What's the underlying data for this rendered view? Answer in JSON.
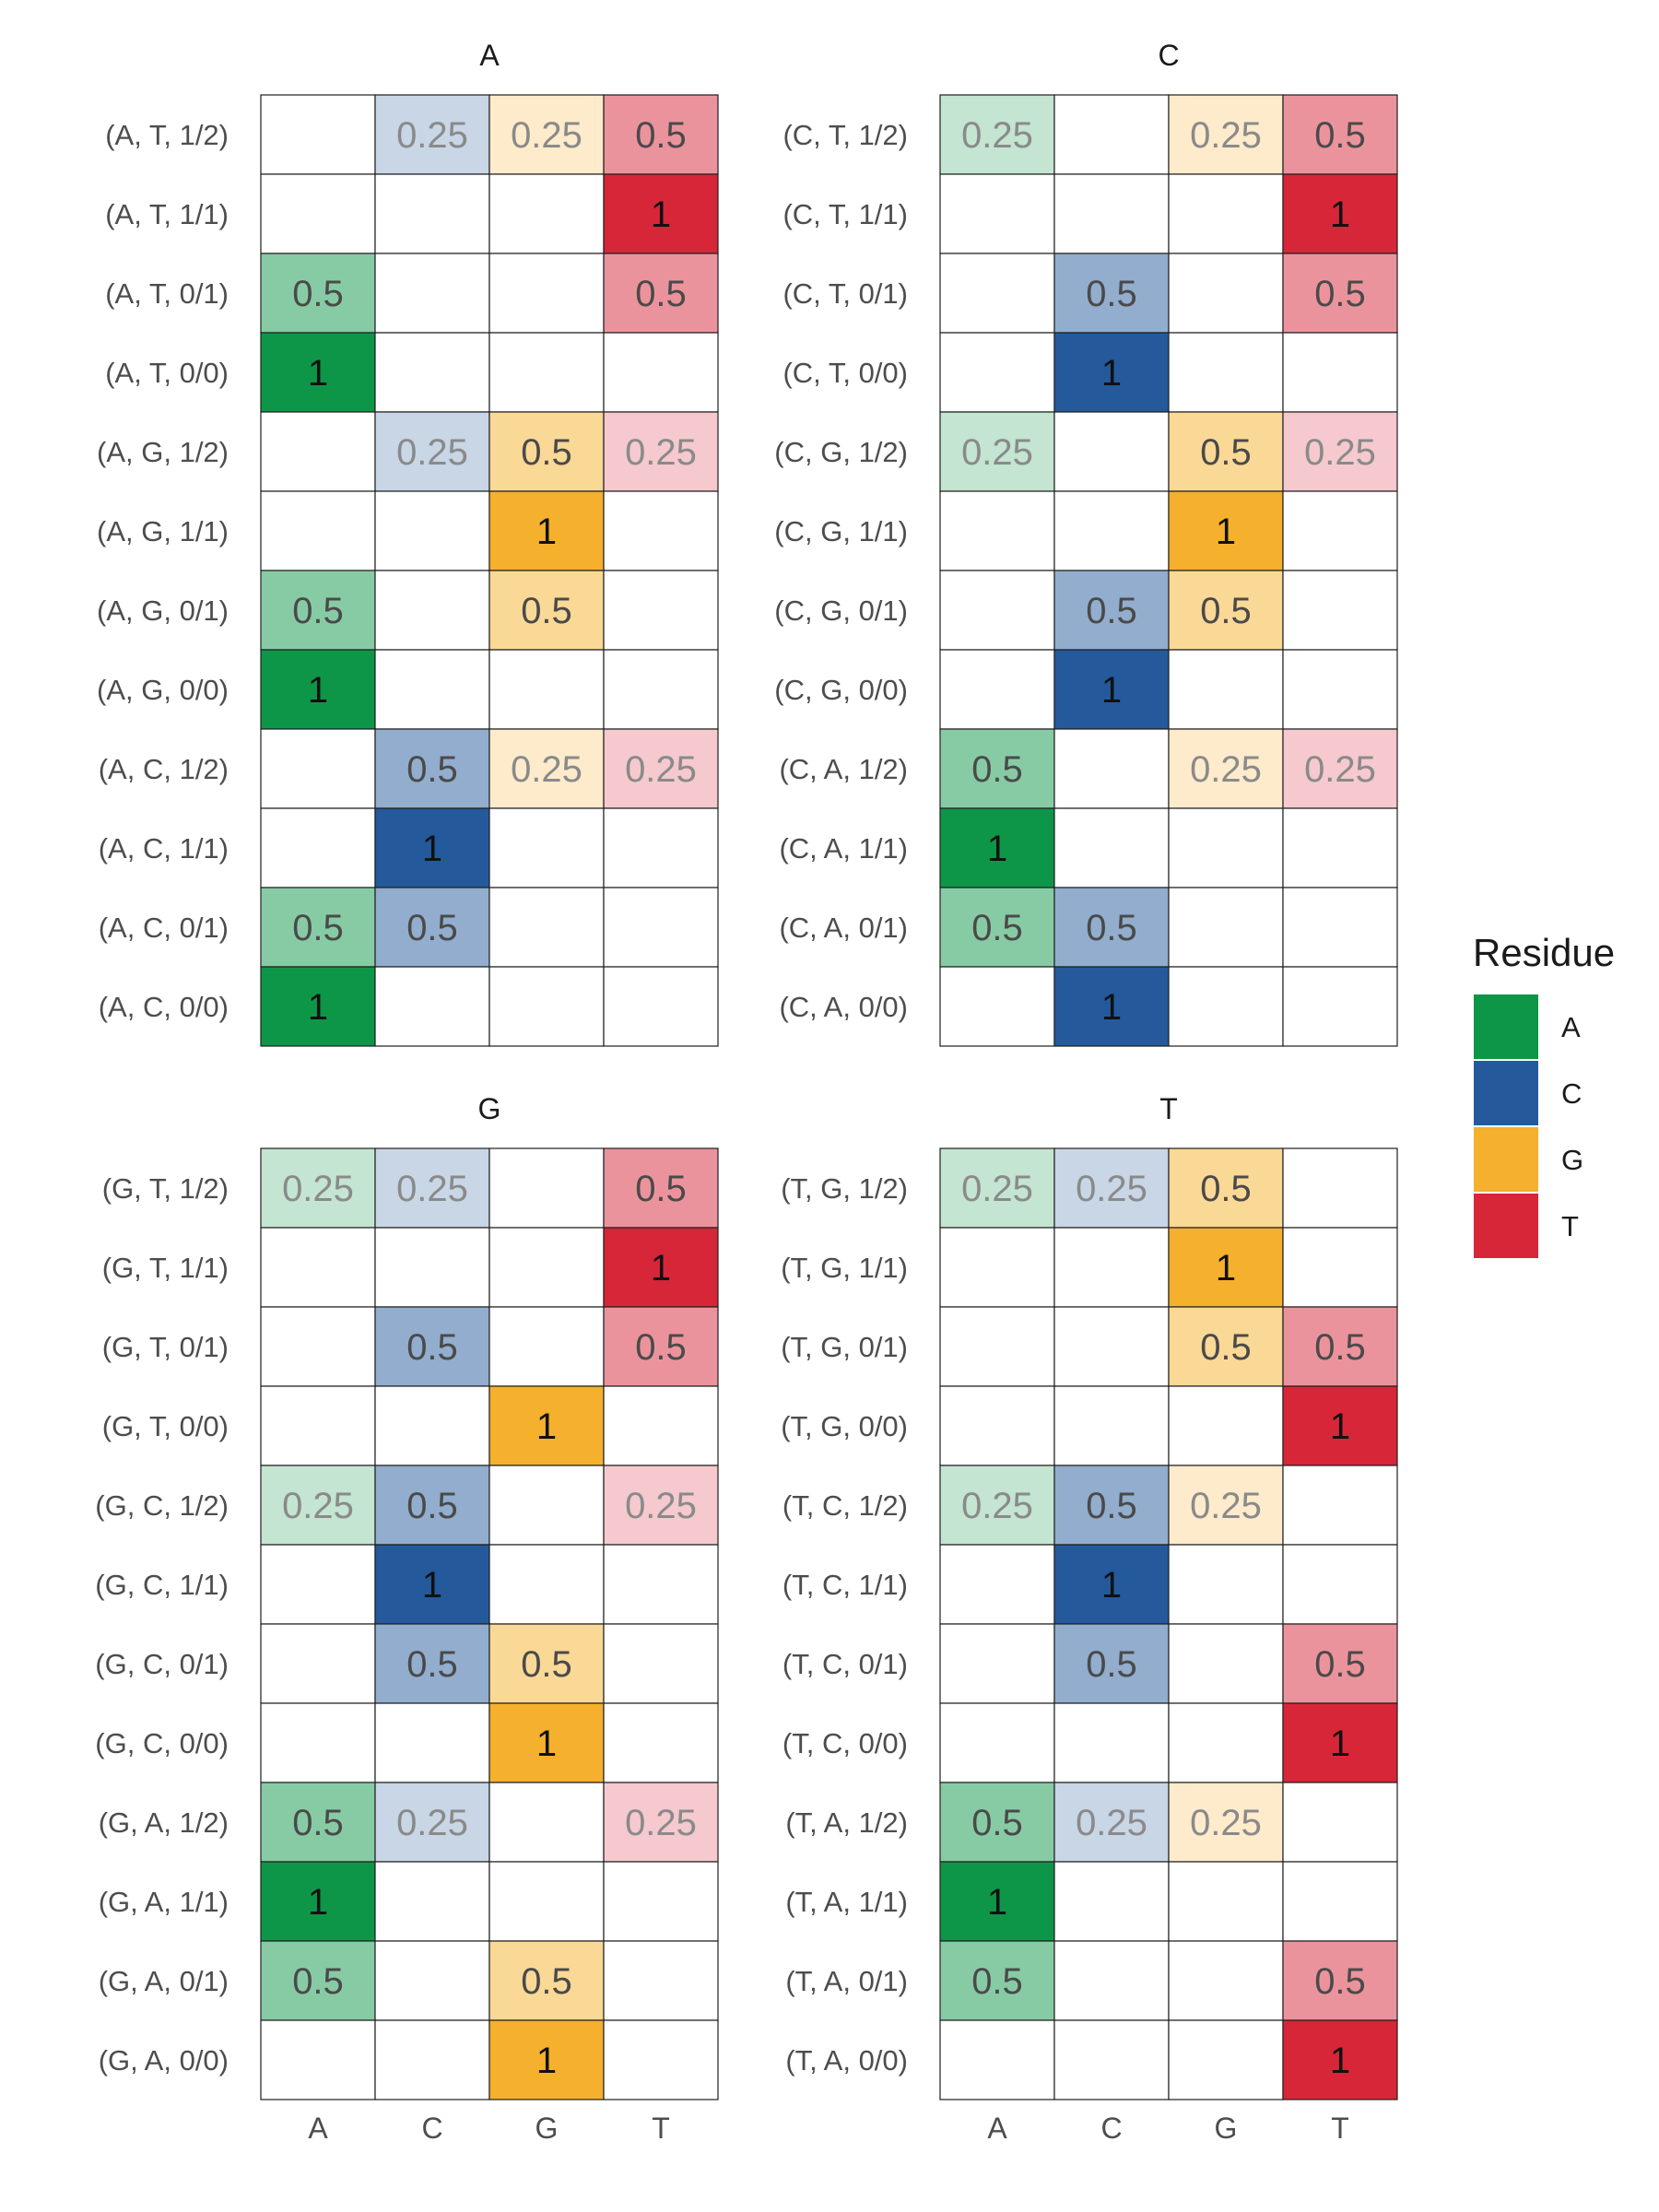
{
  "chart_data": {
    "type": "heatmap",
    "x_categories": [
      "A",
      "C",
      "G",
      "T"
    ],
    "legend": {
      "title": "Residue",
      "position": "right",
      "items": [
        {
          "label": "A",
          "color": "#0E9648"
        },
        {
          "label": "C",
          "color": "#245A9B"
        },
        {
          "label": "G",
          "color": "#F5B02D"
        },
        {
          "label": "T",
          "color": "#D72638"
        }
      ]
    },
    "panels": [
      {
        "title": "A",
        "rows": [
          {
            "label": "(A, T, 1/2)",
            "values": [
              null,
              0.25,
              0.25,
              0.5
            ]
          },
          {
            "label": "(A, T, 1/1)",
            "values": [
              null,
              null,
              null,
              1
            ]
          },
          {
            "label": "(A, T, 0/1)",
            "values": [
              0.5,
              null,
              null,
              0.5
            ]
          },
          {
            "label": "(A, T, 0/0)",
            "values": [
              1,
              null,
              null,
              null
            ]
          },
          {
            "label": "(A, G, 1/2)",
            "values": [
              null,
              0.25,
              0.5,
              0.25
            ]
          },
          {
            "label": "(A, G, 1/1)",
            "values": [
              null,
              null,
              1,
              null
            ]
          },
          {
            "label": "(A, G, 0/1)",
            "values": [
              0.5,
              null,
              0.5,
              null
            ]
          },
          {
            "label": "(A, G, 0/0)",
            "values": [
              1,
              null,
              null,
              null
            ]
          },
          {
            "label": "(A, C, 1/2)",
            "values": [
              null,
              0.5,
              0.25,
              0.25
            ]
          },
          {
            "label": "(A, C, 1/1)",
            "values": [
              null,
              1,
              null,
              null
            ]
          },
          {
            "label": "(A, C, 0/1)",
            "values": [
              0.5,
              0.5,
              null,
              null
            ]
          },
          {
            "label": "(A, C, 0/0)",
            "values": [
              1,
              null,
              null,
              null
            ]
          }
        ]
      },
      {
        "title": "C",
        "rows": [
          {
            "label": "(C, T, 1/2)",
            "values": [
              0.25,
              null,
              0.25,
              0.5
            ]
          },
          {
            "label": "(C, T, 1/1)",
            "values": [
              null,
              null,
              null,
              1
            ]
          },
          {
            "label": "(C, T, 0/1)",
            "values": [
              null,
              0.5,
              null,
              0.5
            ]
          },
          {
            "label": "(C, T, 0/0)",
            "values": [
              null,
              1,
              null,
              null
            ]
          },
          {
            "label": "(C, G, 1/2)",
            "values": [
              0.25,
              null,
              0.5,
              0.25
            ]
          },
          {
            "label": "(C, G, 1/1)",
            "values": [
              null,
              null,
              1,
              null
            ]
          },
          {
            "label": "(C, G, 0/1)",
            "values": [
              null,
              0.5,
              0.5,
              null
            ]
          },
          {
            "label": "(C, G, 0/0)",
            "values": [
              null,
              1,
              null,
              null
            ]
          },
          {
            "label": "(C, A, 1/2)",
            "values": [
              0.5,
              null,
              0.25,
              0.25
            ]
          },
          {
            "label": "(C, A, 1/1)",
            "values": [
              1,
              null,
              null,
              null
            ]
          },
          {
            "label": "(C, A, 0/1)",
            "values": [
              0.5,
              0.5,
              null,
              null
            ]
          },
          {
            "label": "(C, A, 0/0)",
            "values": [
              null,
              1,
              null,
              null
            ]
          }
        ]
      },
      {
        "title": "G",
        "rows": [
          {
            "label": "(G, T, 1/2)",
            "values": [
              0.25,
              0.25,
              null,
              0.5
            ]
          },
          {
            "label": "(G, T, 1/1)",
            "values": [
              null,
              null,
              null,
              1
            ]
          },
          {
            "label": "(G, T, 0/1)",
            "values": [
              null,
              0.5,
              null,
              0.5
            ]
          },
          {
            "label": "(G, T, 0/0)",
            "values": [
              null,
              null,
              1,
              null
            ]
          },
          {
            "label": "(G, C, 1/2)",
            "values": [
              0.25,
              0.5,
              null,
              0.25
            ]
          },
          {
            "label": "(G, C, 1/1)",
            "values": [
              null,
              1,
              null,
              null
            ]
          },
          {
            "label": "(G, C, 0/1)",
            "values": [
              null,
              0.5,
              0.5,
              null
            ]
          },
          {
            "label": "(G, C, 0/0)",
            "values": [
              null,
              null,
              1,
              null
            ]
          },
          {
            "label": "(G, A, 1/2)",
            "values": [
              0.5,
              0.25,
              null,
              0.25
            ]
          },
          {
            "label": "(G, A, 1/1)",
            "values": [
              1,
              null,
              null,
              null
            ]
          },
          {
            "label": "(G, A, 0/1)",
            "values": [
              0.5,
              null,
              0.5,
              null
            ]
          },
          {
            "label": "(G, A, 0/0)",
            "values": [
              null,
              null,
              1,
              null
            ]
          }
        ]
      },
      {
        "title": "T",
        "rows": [
          {
            "label": "(T, G, 1/2)",
            "values": [
              0.25,
              0.25,
              0.5,
              null
            ]
          },
          {
            "label": "(T, G, 1/1)",
            "values": [
              null,
              null,
              1,
              null
            ]
          },
          {
            "label": "(T, G, 0/1)",
            "values": [
              null,
              null,
              0.5,
              0.5
            ]
          },
          {
            "label": "(T, G, 0/0)",
            "values": [
              null,
              null,
              null,
              1
            ]
          },
          {
            "label": "(T, C, 1/2)",
            "values": [
              0.25,
              0.5,
              0.25,
              null
            ]
          },
          {
            "label": "(T, C, 1/1)",
            "values": [
              null,
              1,
              null,
              null
            ]
          },
          {
            "label": "(T, C, 0/1)",
            "values": [
              null,
              0.5,
              null,
              0.5
            ]
          },
          {
            "label": "(T, C, 0/0)",
            "values": [
              null,
              null,
              null,
              1
            ]
          },
          {
            "label": "(T, A, 1/2)",
            "values": [
              0.5,
              0.25,
              0.25,
              null
            ]
          },
          {
            "label": "(T, A, 1/1)",
            "values": [
              1,
              null,
              null,
              null
            ]
          },
          {
            "label": "(T, A, 0/1)",
            "values": [
              0.5,
              null,
              null,
              0.5
            ]
          },
          {
            "label": "(T, A, 0/0)",
            "values": [
              null,
              null,
              null,
              1
            ]
          }
        ]
      }
    ]
  }
}
